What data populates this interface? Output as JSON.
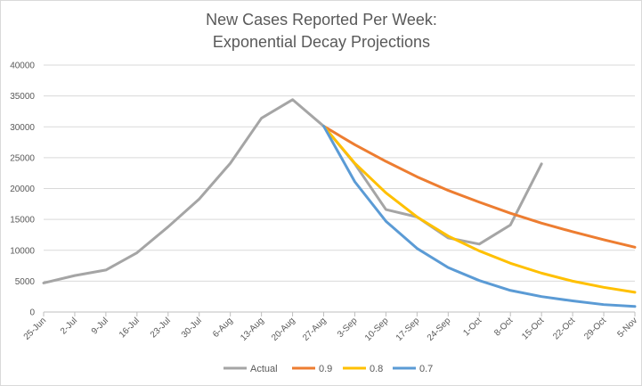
{
  "chart_data": {
    "type": "line",
    "title_line1": "New Cases Reported Per Week:",
    "title_line2": "Exponential Decay Projections",
    "xlabel": "",
    "ylabel": "",
    "ylim": [
      0,
      40000
    ],
    "yticks": [
      0,
      5000,
      10000,
      15000,
      20000,
      25000,
      30000,
      35000,
      40000
    ],
    "grid": true,
    "legend_position": "bottom",
    "categories": [
      "25-Jun",
      "2-Jul",
      "9-Jul",
      "16-Jul",
      "23-Jul",
      "30-Jul",
      "6-Aug",
      "13-Aug",
      "20-Aug",
      "27-Aug",
      "3-Sep",
      "10-Sep",
      "17-Sep",
      "24-Sep",
      "1-Oct",
      "8-Oct",
      "15-Oct",
      "22-Oct",
      "29-Oct",
      "5-Nov"
    ],
    "series": [
      {
        "name": "Actual",
        "color": "#a5a5a5",
        "values": [
          4700,
          5900,
          6800,
          9600,
          13800,
          18300,
          24100,
          31400,
          34400,
          30100,
          24000,
          16600,
          15400,
          12000,
          11000,
          14100,
          24000,
          null,
          null,
          null
        ]
      },
      {
        "name": "0.9",
        "color": "#ed7d31",
        "values": [
          null,
          null,
          null,
          null,
          null,
          null,
          null,
          null,
          null,
          30100,
          27100,
          24400,
          21900,
          19700,
          17800,
          16000,
          14400,
          13000,
          11700,
          10500
        ]
      },
      {
        "name": "0.8",
        "color": "#ffc000",
        "values": [
          null,
          null,
          null,
          null,
          null,
          null,
          null,
          null,
          null,
          30100,
          24100,
          19300,
          15400,
          12300,
          9900,
          7900,
          6300,
          5000,
          4000,
          3200
        ]
      },
      {
        "name": "0.7",
        "color": "#5b9bd5",
        "values": [
          null,
          null,
          null,
          null,
          null,
          null,
          null,
          null,
          null,
          30100,
          21100,
          14700,
          10300,
          7200,
          5100,
          3500,
          2500,
          1800,
          1200,
          900
        ]
      }
    ]
  }
}
